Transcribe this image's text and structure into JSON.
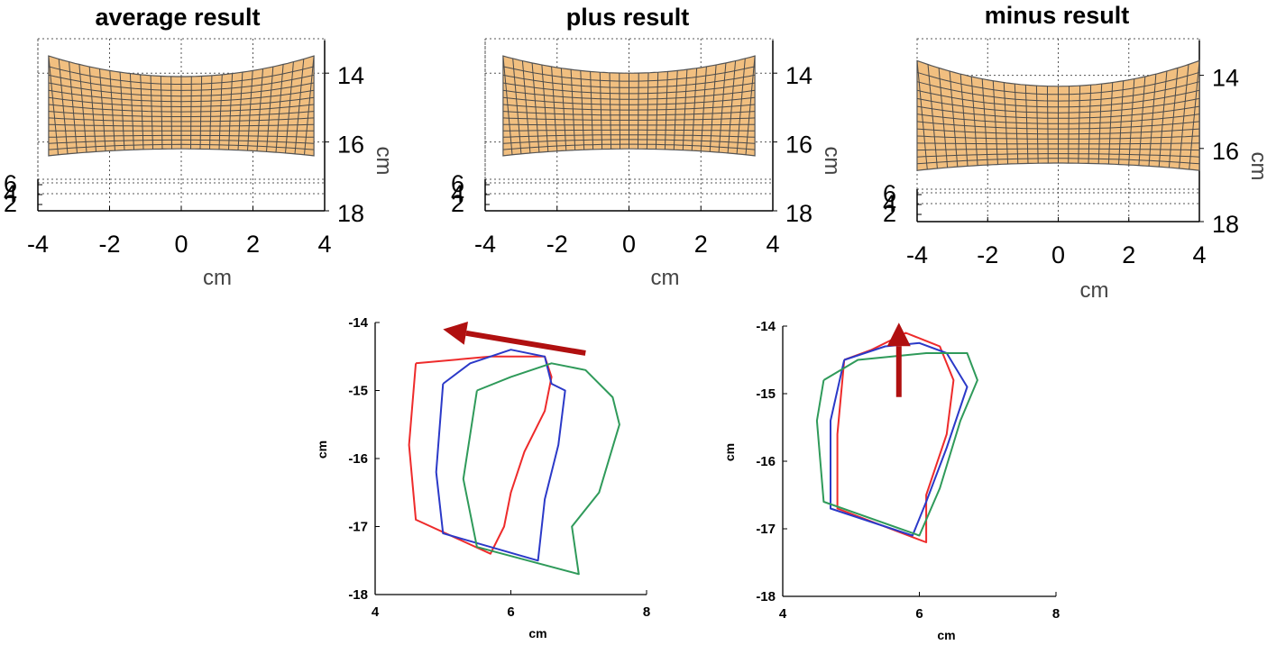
{
  "chart_data": [
    {
      "type": "surface",
      "title": "average result",
      "xlabel": "cm",
      "ylabel": "cm",
      "xlim": [
        -4,
        4
      ],
      "ylim": [
        13,
        18
      ],
      "x_ticks": [
        "-4",
        "-2",
        "0",
        "2",
        "4"
      ],
      "y_ticks": [
        "14",
        "16",
        "18"
      ],
      "z_ticks": [
        "6",
        "4",
        "2"
      ],
      "grid": true,
      "surface_color": "#f1bf80",
      "mesh_color": "#4a4a4a",
      "surface": {
        "x_range": [
          -3.7,
          3.7
        ],
        "top_edge_y": 13.5,
        "top_center_y": 14.1,
        "bottom_edge_y": 16.4,
        "bottom_center_y": 16.2
      }
    },
    {
      "type": "surface",
      "title": "plus result",
      "xlabel": "cm",
      "ylabel": "cm",
      "xlim": [
        -4,
        4
      ],
      "ylim": [
        13,
        18
      ],
      "x_ticks": [
        "-4",
        "-2",
        "0",
        "2",
        "4"
      ],
      "y_ticks": [
        "14",
        "16",
        "18"
      ],
      "z_ticks": [
        "6",
        "4",
        "2"
      ],
      "grid": true,
      "surface_color": "#f1bf80",
      "mesh_color": "#4a4a4a",
      "surface": {
        "x_range": [
          -3.5,
          3.5
        ],
        "top_edge_y": 13.5,
        "top_center_y": 14.0,
        "bottom_edge_y": 16.4,
        "bottom_center_y": 16.2
      }
    },
    {
      "type": "surface",
      "title": "minus result",
      "xlabel": "cm",
      "ylabel": "cm",
      "xlim": [
        -4,
        4
      ],
      "ylim": [
        13,
        18
      ],
      "x_ticks": [
        "-4",
        "-2",
        "0",
        "2",
        "4"
      ],
      "y_ticks": [
        "14",
        "16",
        "18"
      ],
      "z_ticks": [
        "6",
        "4",
        "2"
      ],
      "grid": true,
      "surface_color": "#f1bf80",
      "mesh_color": "#4a4a4a",
      "surface": {
        "x_range": [
          -4,
          4
        ],
        "top_edge_y": 13.6,
        "top_center_y": 14.3,
        "bottom_edge_y": 16.6,
        "bottom_center_y": 16.4
      }
    },
    {
      "type": "line",
      "title": "",
      "xlabel": "cm",
      "ylabel": "cm",
      "xlim": [
        4,
        8
      ],
      "ylim": [
        -18,
        -14
      ],
      "x_ticks": [
        "4",
        "6",
        "8"
      ],
      "y_ticks": [
        "-14",
        "-15",
        "-16",
        "-17",
        "-18"
      ],
      "grid": false,
      "arrow": {
        "color": "#b01010",
        "from": [
          7.1,
          -14.45
        ],
        "to": [
          5.0,
          -14.1
        ]
      },
      "series": [
        {
          "color": "#ee2b2b",
          "x": [
            4.6,
            5.7,
            6.5,
            6.6,
            6.5,
            6.2,
            6.0,
            5.9,
            5.7,
            4.6,
            4.5,
            4.6
          ],
          "y": [
            -14.6,
            -14.5,
            -14.5,
            -14.8,
            -15.3,
            -15.9,
            -16.5,
            -17.0,
            -17.4,
            -16.9,
            -15.8,
            -14.6
          ]
        },
        {
          "color": "#2b39c8",
          "x": [
            5.0,
            5.4,
            6.0,
            6.5,
            6.6,
            6.8,
            6.7,
            6.5,
            6.4,
            5.0,
            4.9,
            5.0
          ],
          "y": [
            -14.9,
            -14.6,
            -14.4,
            -14.5,
            -14.9,
            -15.0,
            -15.8,
            -16.6,
            -17.5,
            -17.1,
            -16.2,
            -14.9
          ]
        },
        {
          "color": "#2f9a5a",
          "x": [
            5.5,
            6.0,
            6.6,
            7.1,
            7.5,
            7.6,
            7.3,
            6.9,
            7.0,
            5.5,
            5.3,
            5.5
          ],
          "y": [
            -15.0,
            -14.8,
            -14.6,
            -14.7,
            -15.1,
            -15.5,
            -16.5,
            -17.0,
            -17.7,
            -17.3,
            -16.3,
            -15.0
          ]
        }
      ]
    },
    {
      "type": "line",
      "title": "",
      "xlabel": "cm",
      "ylabel": "cm",
      "xlim": [
        4,
        8
      ],
      "ylim": [
        -18,
        -14
      ],
      "x_ticks": [
        "4",
        "6",
        "8"
      ],
      "y_ticks": [
        "-14",
        "-15",
        "-16",
        "-17",
        "-18"
      ],
      "grid": false,
      "arrow": {
        "color": "#b01010",
        "from": [
          5.7,
          -15.05
        ],
        "to": [
          5.7,
          -13.95
        ]
      },
      "series": [
        {
          "color": "#ee2b2b",
          "x": [
            4.9,
            5.3,
            5.8,
            6.3,
            6.5,
            6.4,
            6.1,
            6.1,
            4.8,
            4.8,
            4.9
          ],
          "y": [
            -14.5,
            -14.35,
            -14.1,
            -14.3,
            -14.8,
            -15.6,
            -16.5,
            -17.2,
            -16.7,
            -15.6,
            -14.5
          ]
        },
        {
          "color": "#2b39c8",
          "x": [
            4.9,
            5.5,
            6.0,
            6.4,
            6.7,
            6.4,
            6.1,
            5.9,
            4.7,
            4.7,
            4.9
          ],
          "y": [
            -14.5,
            -14.3,
            -14.25,
            -14.4,
            -14.9,
            -15.8,
            -16.6,
            -17.1,
            -16.7,
            -15.4,
            -14.5
          ]
        },
        {
          "color": "#2f9a5a",
          "x": [
            4.6,
            5.1,
            6.1,
            6.7,
            6.85,
            6.6,
            6.3,
            6.0,
            4.6,
            4.5,
            4.6
          ],
          "y": [
            -14.8,
            -14.5,
            -14.4,
            -14.4,
            -14.8,
            -15.4,
            -16.4,
            -17.1,
            -16.6,
            -15.4,
            -14.8
          ]
        }
      ]
    }
  ]
}
